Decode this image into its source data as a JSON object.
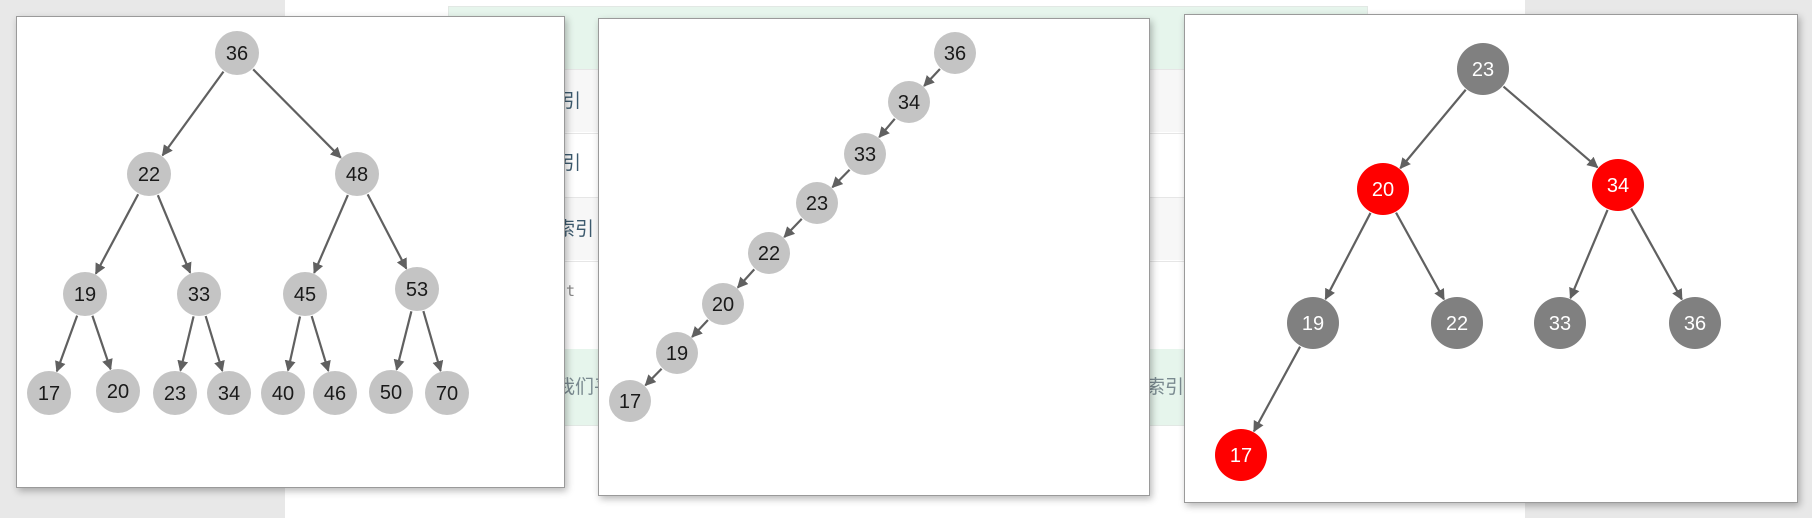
{
  "colors": {
    "node_gray_light": "#c4c4c4",
    "node_gray_dark": "#808080",
    "node_red": "#ff0000",
    "edge": "#606060",
    "label_dark": "#1a1a1a",
    "label_light": "#ffffff"
  },
  "background": {
    "texts": [
      "引",
      "引",
      "索引",
      "t",
      "我们平",
      "索引"
    ]
  },
  "diagrams": [
    {
      "name": "complete-bst",
      "nodes": [
        {
          "id": "n36",
          "label": "36",
          "fill": "light"
        },
        {
          "id": "n22",
          "label": "22",
          "fill": "light"
        },
        {
          "id": "n48",
          "label": "48",
          "fill": "light"
        },
        {
          "id": "n19",
          "label": "19",
          "fill": "light"
        },
        {
          "id": "n33",
          "label": "33",
          "fill": "light"
        },
        {
          "id": "n45",
          "label": "45",
          "fill": "light"
        },
        {
          "id": "n53",
          "label": "53",
          "fill": "light"
        },
        {
          "id": "n17",
          "label": "17",
          "fill": "light"
        },
        {
          "id": "n20",
          "label": "20",
          "fill": "light"
        },
        {
          "id": "n23",
          "label": "23",
          "fill": "light"
        },
        {
          "id": "n34",
          "label": "34",
          "fill": "light"
        },
        {
          "id": "n40",
          "label": "40",
          "fill": "light"
        },
        {
          "id": "n46",
          "label": "46",
          "fill": "light"
        },
        {
          "id": "n50",
          "label": "50",
          "fill": "light"
        },
        {
          "id": "n70",
          "label": "70",
          "fill": "light"
        }
      ],
      "edges": [
        [
          "n36",
          "n22"
        ],
        [
          "n36",
          "n48"
        ],
        [
          "n22",
          "n19"
        ],
        [
          "n22",
          "n33"
        ],
        [
          "n48",
          "n45"
        ],
        [
          "n48",
          "n53"
        ],
        [
          "n19",
          "n17"
        ],
        [
          "n19",
          "n20"
        ],
        [
          "n33",
          "n23"
        ],
        [
          "n33",
          "n34"
        ],
        [
          "n45",
          "n40"
        ],
        [
          "n45",
          "n46"
        ],
        [
          "n53",
          "n50"
        ],
        [
          "n53",
          "n70"
        ]
      ]
    },
    {
      "name": "degenerate-bst",
      "nodes": [
        {
          "id": "m36",
          "label": "36",
          "fill": "light"
        },
        {
          "id": "m34",
          "label": "34",
          "fill": "light"
        },
        {
          "id": "m33",
          "label": "33",
          "fill": "light"
        },
        {
          "id": "m23",
          "label": "23",
          "fill": "light"
        },
        {
          "id": "m22",
          "label": "22",
          "fill": "light"
        },
        {
          "id": "m20",
          "label": "20",
          "fill": "light"
        },
        {
          "id": "m19",
          "label": "19",
          "fill": "light"
        },
        {
          "id": "m17",
          "label": "17",
          "fill": "light"
        }
      ],
      "edges": [
        [
          "m36",
          "m34"
        ],
        [
          "m34",
          "m33"
        ],
        [
          "m33",
          "m23"
        ],
        [
          "m23",
          "m22"
        ],
        [
          "m22",
          "m20"
        ],
        [
          "m20",
          "m19"
        ],
        [
          "m19",
          "m17"
        ]
      ]
    },
    {
      "name": "red-black-tree",
      "nodes": [
        {
          "id": "r23",
          "label": "23",
          "fill": "black"
        },
        {
          "id": "r20",
          "label": "20",
          "fill": "red"
        },
        {
          "id": "r34",
          "label": "34",
          "fill": "red"
        },
        {
          "id": "r19",
          "label": "19",
          "fill": "black"
        },
        {
          "id": "r22",
          "label": "22",
          "fill": "black"
        },
        {
          "id": "r33",
          "label": "33",
          "fill": "black"
        },
        {
          "id": "r36",
          "label": "36",
          "fill": "black"
        },
        {
          "id": "r17",
          "label": "17",
          "fill": "red"
        }
      ],
      "edges": [
        [
          "r23",
          "r20"
        ],
        [
          "r23",
          "r34"
        ],
        [
          "r20",
          "r19"
        ],
        [
          "r20",
          "r22"
        ],
        [
          "r34",
          "r33"
        ],
        [
          "r34",
          "r36"
        ],
        [
          "r19",
          "r17"
        ]
      ]
    }
  ]
}
